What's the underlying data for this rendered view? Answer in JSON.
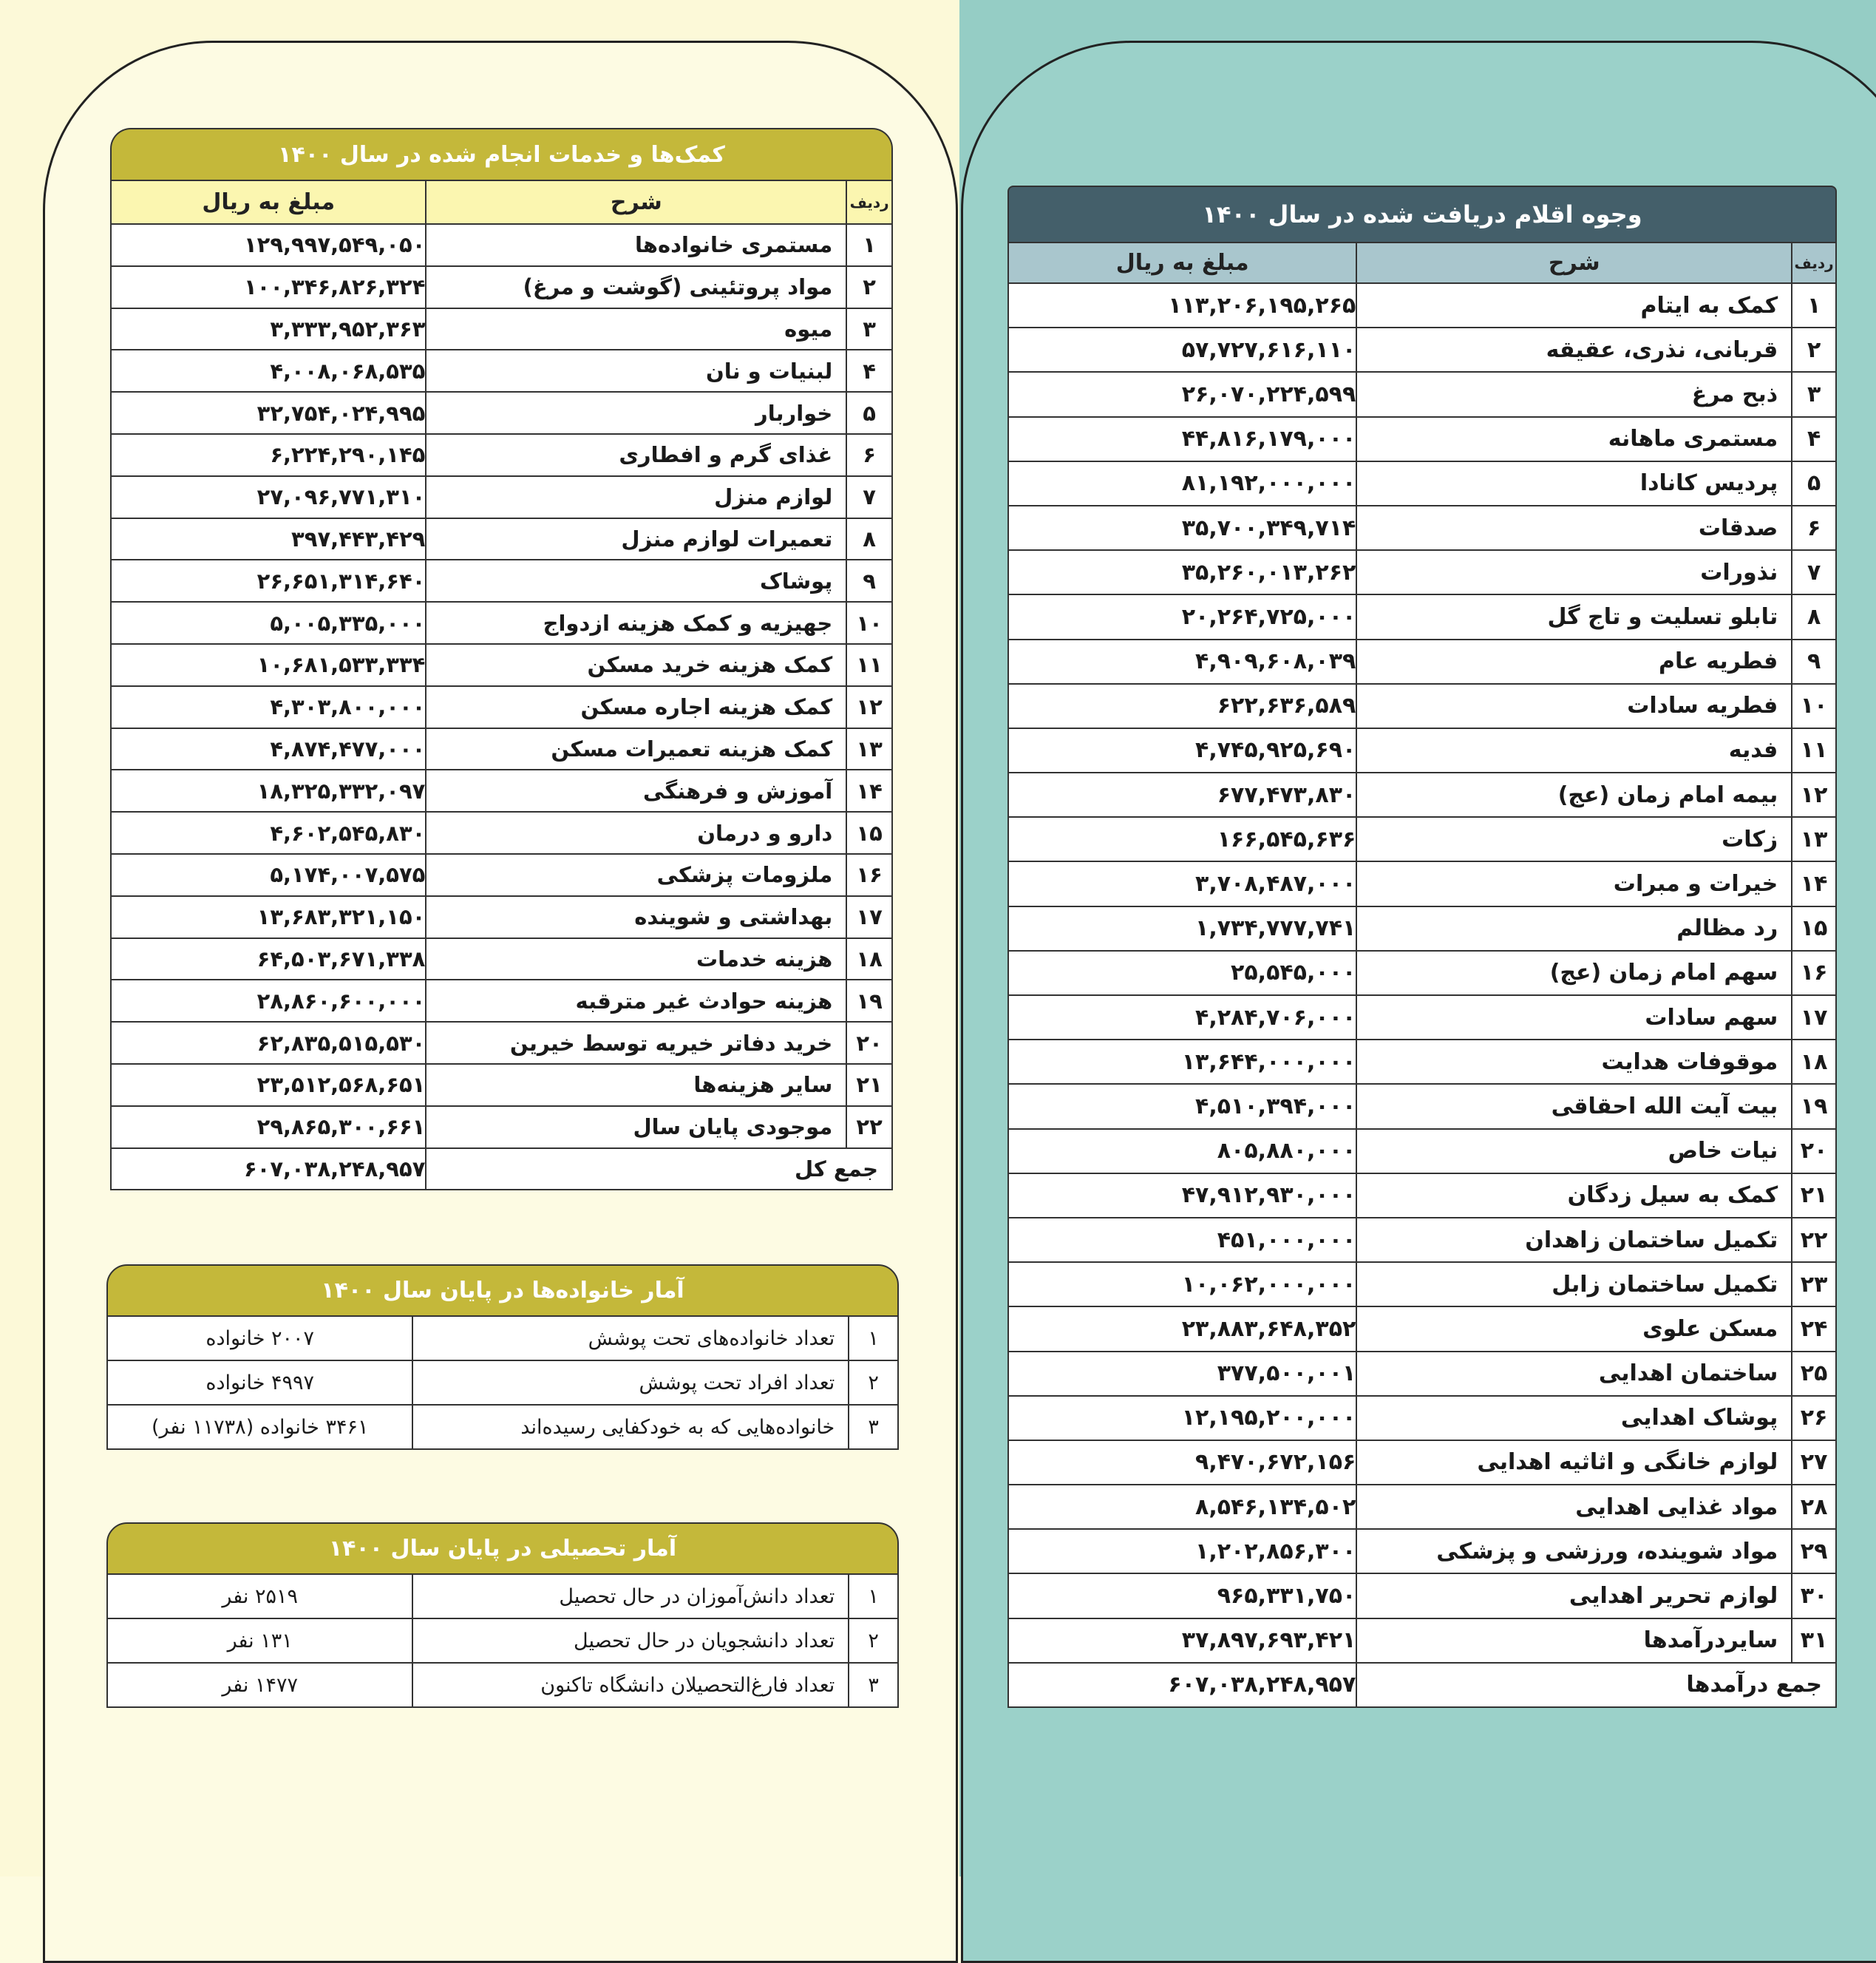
{
  "colors": {
    "left_bg": "#fcf9d8",
    "right_bg": "#95cdc5",
    "olive_header": "#c4b83a",
    "yellow_colhead": "#fbf6b0",
    "slate_header": "#445f6a",
    "blue_colhead": "#a9c6cd"
  },
  "aid_table": {
    "title": "کمک‌ها و خدمات انجام شده در سال ۱۴۰۰",
    "col_index": "ردیف",
    "col_desc": "شرح",
    "col_amount": "مبلغ به ریال",
    "rows": [
      {
        "i": "۱",
        "d": "مستمری خانواده‌ها",
        "a": "۱۲۹,۹۹۷,۵۴۹,۰۵۰"
      },
      {
        "i": "۲",
        "d": "مواد پروتئینی (گوشت و مرغ)",
        "a": "۱۰۰,۳۴۶,۸۲۶,۳۲۴"
      },
      {
        "i": "۳",
        "d": "میوه",
        "a": "۳,۳۳۳,۹۵۲,۳۶۳"
      },
      {
        "i": "۴",
        "d": "لبنیات و نان",
        "a": "۴,۰۰۸,۰۶۸,۵۳۵"
      },
      {
        "i": "۵",
        "d": "خواربار",
        "a": "۳۲,۷۵۴,۰۲۴,۹۹۵"
      },
      {
        "i": "۶",
        "d": "غذای گرم و افطاری",
        "a": "۶,۲۲۴,۲۹۰,۱۴۵"
      },
      {
        "i": "۷",
        "d": "لوازم منزل",
        "a": "۲۷,۰۹۶,۷۷۱,۳۱۰"
      },
      {
        "i": "۸",
        "d": "تعمیرات لوازم منزل",
        "a": "۳۹۷,۴۴۳,۴۲۹"
      },
      {
        "i": "۹",
        "d": "پوشاک",
        "a": "۲۶,۶۵۱,۳۱۴,۶۴۰"
      },
      {
        "i": "۱۰",
        "d": "جهیزیه و کمک هزینه ازدواج",
        "a": "۵,۰۰۵,۳۳۵,۰۰۰"
      },
      {
        "i": "۱۱",
        "d": "کمک هزینه خرید مسکن",
        "a": "۱۰,۶۸۱,۵۳۳,۳۳۴"
      },
      {
        "i": "۱۲",
        "d": "کمک هزینه اجاره مسکن",
        "a": "۴,۳۰۳,۸۰۰,۰۰۰"
      },
      {
        "i": "۱۳",
        "d": "کمک هزینه تعمیرات مسکن",
        "a": "۴,۸۷۴,۴۷۷,۰۰۰"
      },
      {
        "i": "۱۴",
        "d": "آموزش و فرهنگی",
        "a": "۱۸,۳۲۵,۳۳۲,۰۹۷"
      },
      {
        "i": "۱۵",
        "d": "دارو و درمان",
        "a": "۴,۶۰۲,۵۴۵,۸۳۰"
      },
      {
        "i": "۱۶",
        "d": "ملزومات پزشکی",
        "a": "۵,۱۷۴,۰۰۷,۵۷۵"
      },
      {
        "i": "۱۷",
        "d": "بهداشتی و شوینده",
        "a": "۱۳,۶۸۳,۳۲۱,۱۵۰"
      },
      {
        "i": "۱۸",
        "d": "هزینه خدمات",
        "a": "۶۴,۵۰۳,۶۷۱,۳۳۸"
      },
      {
        "i": "۱۹",
        "d": "هزینه حوادث غیر مترقبه",
        "a": "۲۸,۸۶۰,۶۰۰,۰۰۰"
      },
      {
        "i": "۲۰",
        "d": "خرید دفاتر خیریه توسط خیرین",
        "a": "۶۲,۸۳۵,۵۱۵,۵۳۰"
      },
      {
        "i": "۲۱",
        "d": "سایر هزینه‌ها",
        "a": "۲۳,۵۱۲,۵۶۸,۶۵۱"
      },
      {
        "i": "۲۲",
        "d": "موجودی پایان سال",
        "a": "۲۹,۸۶۵,۳۰۰,۶۶۱"
      }
    ],
    "total_label": "جمع کل",
    "total_amount": "۶۰۷,۰۳۸,۲۴۸,۹۵۷"
  },
  "income_table": {
    "title": "وجوه اقلام دریافت شده در سال ۱۴۰۰",
    "col_index": "ردیف",
    "col_desc": "شرح",
    "col_amount": "مبلغ به ریال",
    "rows": [
      {
        "i": "۱",
        "d": "کمک به ایتام",
        "a": "۱۱۳,۲۰۶,۱۹۵,۲۶۵"
      },
      {
        "i": "۲",
        "d": "قربانی، نذری، عقیقه",
        "a": "۵۷,۷۲۷,۶۱۶,۱۱۰"
      },
      {
        "i": "۳",
        "d": "ذبح مرغ",
        "a": "۲۶,۰۷۰,۲۲۴,۵۹۹"
      },
      {
        "i": "۴",
        "d": "مستمری ماهانه",
        "a": "۴۴,۸۱۶,۱۷۹,۰۰۰"
      },
      {
        "i": "۵",
        "d": "پردیس کانادا",
        "a": "۸۱,۱۹۲,۰۰۰,۰۰۰"
      },
      {
        "i": "۶",
        "d": "صدقات",
        "a": "۳۵,۷۰۰,۳۴۹,۷۱۴"
      },
      {
        "i": "۷",
        "d": "نذورات",
        "a": "۳۵,۲۶۰,۰۱۳,۲۶۲"
      },
      {
        "i": "۸",
        "d": "تابلو تسلیت و تاج گل",
        "a": "۲۰,۲۶۴,۷۲۵,۰۰۰"
      },
      {
        "i": "۹",
        "d": "فطریه عام",
        "a": "۴,۹۰۹,۶۰۸,۰۳۹"
      },
      {
        "i": "۱۰",
        "d": "فطریه سادات",
        "a": "۶۲۲,۶۳۶,۵۸۹"
      },
      {
        "i": "۱۱",
        "d": "فدیه",
        "a": "۴,۷۴۵,۹۲۵,۶۹۰"
      },
      {
        "i": "۱۲",
        "d": "بیمه امام زمان (عج)",
        "a": "۶۷۷,۴۷۳,۸۳۰"
      },
      {
        "i": "۱۳",
        "d": "زکات",
        "a": "۱۶۶,۵۴۵,۶۳۶"
      },
      {
        "i": "۱۴",
        "d": "خیرات و مبرات",
        "a": "۳,۷۰۸,۴۸۷,۰۰۰"
      },
      {
        "i": "۱۵",
        "d": "رد مظالم",
        "a": "۱,۷۳۴,۷۷۷,۷۴۱"
      },
      {
        "i": "۱۶",
        "d": "سهم امام زمان (عج)",
        "a": "۲۵,۵۴۵,۰۰۰"
      },
      {
        "i": "۱۷",
        "d": "سهم سادات",
        "a": "۴,۲۸۴,۷۰۶,۰۰۰"
      },
      {
        "i": "۱۸",
        "d": "موقوفات هدایت",
        "a": "۱۳,۶۴۴,۰۰۰,۰۰۰"
      },
      {
        "i": "۱۹",
        "d": "بیت آیت الله احقاقی",
        "a": "۴,۵۱۰,۳۹۴,۰۰۰"
      },
      {
        "i": "۲۰",
        "d": "نیات خاص",
        "a": "۸۰۵,۸۸۰,۰۰۰"
      },
      {
        "i": "۲۱",
        "d": "کمک به سیل زدگان",
        "a": "۴۷,۹۱۲,۹۳۰,۰۰۰"
      },
      {
        "i": "۲۲",
        "d": "تکمیل ساختمان زاهدان",
        "a": "۴۵۱,۰۰۰,۰۰۰"
      },
      {
        "i": "۲۳",
        "d": "تکمیل ساختمان زابل",
        "a": "۱۰,۰۶۲,۰۰۰,۰۰۰"
      },
      {
        "i": "۲۴",
        "d": "مسکن علوی",
        "a": "۲۳,۸۸۳,۶۴۸,۳۵۲"
      },
      {
        "i": "۲۵",
        "d": "ساختمان اهدایی",
        "a": "۳۷۷,۵۰۰,۰۰۱"
      },
      {
        "i": "۲۶",
        "d": "پوشاک اهدایی",
        "a": "۱۲,۱۹۵,۲۰۰,۰۰۰"
      },
      {
        "i": "۲۷",
        "d": "لوازم خانگی و اثاثیه اهدایی",
        "a": "۹,۴۷۰,۶۷۲,۱۵۶"
      },
      {
        "i": "۲۸",
        "d": "مواد غذایی اهدایی",
        "a": "۸,۵۴۶,۱۳۴,۵۰۲"
      },
      {
        "i": "۲۹",
        "d": "مواد شوینده، ورزشی و پزشکی",
        "a": "۱,۲۰۲,۸۵۶,۳۰۰"
      },
      {
        "i": "۳۰",
        "d": "لوازم تحریر اهدایی",
        "a": "۹۶۵,۳۳۱,۷۵۰"
      },
      {
        "i": "۳۱",
        "d": "سایردرآمدها",
        "a": "۳۷,۸۹۷,۶۹۳,۴۲۱"
      }
    ],
    "total_label": "جمع درآمدها",
    "total_amount": "۶۰۷,۰۳۸,۲۴۸,۹۵۷"
  },
  "families_table": {
    "title": "آمار خانواده‌ها در پایان سال ۱۴۰۰",
    "rows": [
      {
        "i": "۱",
        "d": "تعداد خانواده‌های تحت پوشش",
        "v": "۲۰۰۷ خانواده"
      },
      {
        "i": "۲",
        "d": "تعداد افراد تحت پوشش",
        "v": "۴۹۹۷ خانواده"
      },
      {
        "i": "۳",
        "d": "خانواده‌هایی که به خودکفایی رسیده‌اند",
        "v": "۳۴۶۱ خانواده (۱۱۷۳۸ نفر)"
      }
    ]
  },
  "education_table": {
    "title": "آمار تحصیلی در پایان سال ۱۴۰۰",
    "rows": [
      {
        "i": "۱",
        "d": "تعداد دانش‌آموزان در حال تحصیل",
        "v": "۲۵۱۹ نفر"
      },
      {
        "i": "۲",
        "d": "تعداد دانشجویان در حال تحصیل",
        "v": "۱۳۱ نفر"
      },
      {
        "i": "۳",
        "d": "تعداد فارغ‌التحصیلان دانشگاه تاکنون",
        "v": "۱۴۷۷ نفر"
      }
    ]
  }
}
